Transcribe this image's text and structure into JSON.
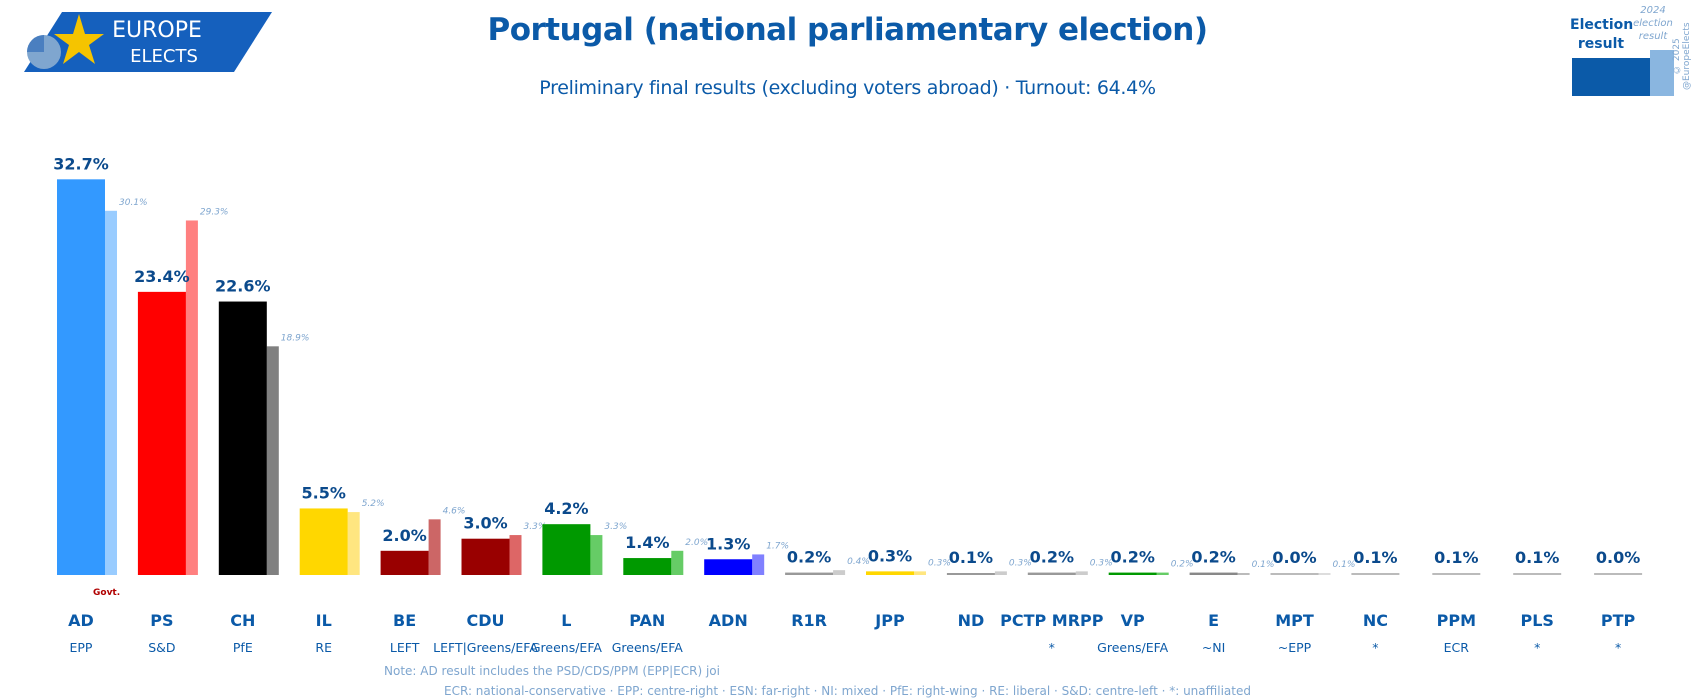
{
  "logo": {
    "line1": "EUROPE",
    "line2": "ELECTS"
  },
  "chart_data": {
    "type": "bar",
    "title": "Portugal (national parliamentary election)",
    "subtitle": "Preliminary final results (excluding voters abroad) · Turnout: 64.4%",
    "categories": [
      "AD",
      "PS",
      "CH",
      "IL",
      "BE",
      "CDU",
      "L",
      "PAN",
      "ADN",
      "R1R",
      "JPP",
      "ND",
      "PCTP MRPP",
      "VP",
      "E",
      "MPT",
      "NC",
      "PPM",
      "PLS",
      "PTP"
    ],
    "groups": [
      "EPP",
      "S&D",
      "PfE",
      "RE",
      "LEFT",
      "LEFT|Greens/EFA",
      "Greens/EFA",
      "Greens/EFA",
      "",
      "",
      "",
      "",
      "*",
      "Greens/EFA",
      "~NI",
      "~EPP",
      "*",
      "ECR",
      "*",
      "*"
    ],
    "series": [
      {
        "name": "Election result",
        "values": [
          32.7,
          23.4,
          22.6,
          5.5,
          2.0,
          3.0,
          4.2,
          1.4,
          1.3,
          0.2,
          0.3,
          0.1,
          0.2,
          0.2,
          0.2,
          0.0,
          0.1,
          0.1,
          0.1,
          0.0
        ],
        "labels": [
          "32.7%",
          "23.4%",
          "22.6%",
          "5.5%",
          "2.0%",
          "3.0%",
          "4.2%",
          "1.4%",
          "1.3%",
          "0.2%",
          "0.3%",
          "0.1%",
          "0.2%",
          "0.2%",
          "0.2%",
          "0.0%",
          "0.1%",
          "0.1%",
          "0.1%",
          "0.0%"
        ]
      },
      {
        "name": "2024 election result",
        "values": [
          30.1,
          29.3,
          18.9,
          5.2,
          4.6,
          3.3,
          3.3,
          2.0,
          1.7,
          0.4,
          0.3,
          0.3,
          0.3,
          0.2,
          0.1,
          0.1,
          null,
          null,
          null,
          null
        ],
        "labels": [
          "30.1%",
          "29.3%",
          "18.9%",
          "5.2%",
          "4.6%",
          "3.3%",
          "3.3%",
          "2.0%",
          "1.7%",
          "0.4%",
          "0.3%",
          "0.3%",
          "0.3%",
          "0.2%",
          "0.1%",
          "0.1%",
          "",
          "",
          "",
          ""
        ]
      }
    ],
    "colors": [
      "#3399ff",
      "#ff0000",
      "#000000",
      "#ffd700",
      "#990000",
      "#990000",
      "#009900",
      "#009900",
      "#0000ff",
      "#999999",
      "#ffd700",
      "#999999",
      "#999999",
      "#009900",
      "#888888",
      "#bbbbbb",
      "#bbbbbb",
      "#bbbbbb",
      "#bbbbbb",
      "#bbbbbb"
    ],
    "prev_colors": [
      "#99ccff",
      "#ff8080",
      "#808080",
      "#ffe680",
      "#cc6666",
      "#dd6666",
      "#66cc66",
      "#66cc66",
      "#8080ff",
      "#cccccc",
      "#ffe680",
      "#cccccc",
      "#cccccc",
      "#66cc66",
      "#bbbbbb",
      "#dddddd",
      "",
      "",
      "",
      ""
    ],
    "govt_label": "Govt.",
    "ylim": [
      0,
      35
    ]
  },
  "legend": {
    "current_label": "Election result",
    "previous_label": "2024 election result",
    "copyright": "© 2025 @EuropeElects"
  },
  "note": "Note: AD result includes the PSD/CDS/PPM (EPP|ECR) joi",
  "footer": "ECR: national-conservative · EPP: centre-right · ESN: far-right · NI: mixed · PfE: right-wing · RE: liberal · S&D: centre-left · *: unaffiliated"
}
